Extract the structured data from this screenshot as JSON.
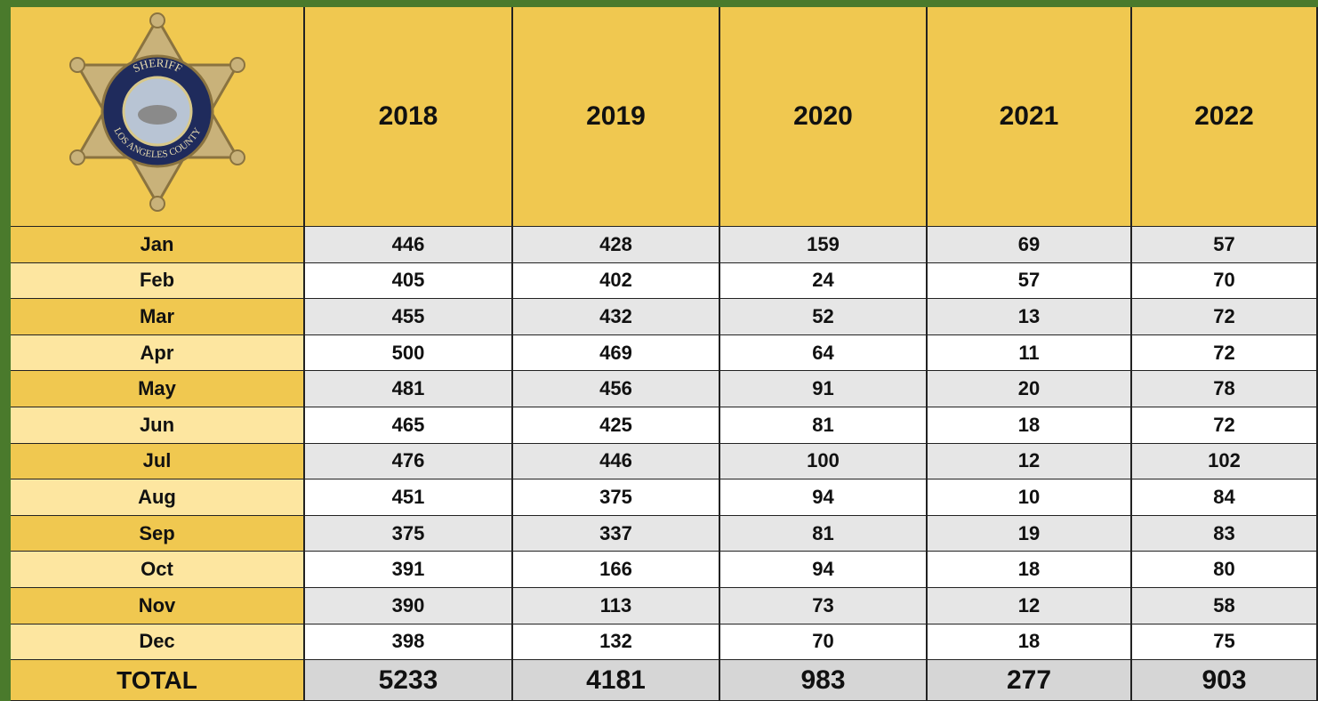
{
  "logo": {
    "top_text": "SHERIFF",
    "bottom_text": "LOS ANGELES COUNTY"
  },
  "table": {
    "header": [
      "2018",
      "2019",
      "2020",
      "2021",
      "2022"
    ],
    "rows": [
      [
        "Jan",
        446,
        428,
        159,
        69,
        57
      ],
      [
        "Feb",
        405,
        402,
        24,
        57,
        70
      ],
      [
        "Mar",
        455,
        432,
        52,
        13,
        72
      ],
      [
        "Apr",
        500,
        469,
        64,
        11,
        72
      ],
      [
        "May",
        481,
        456,
        91,
        20,
        78
      ],
      [
        "Jun",
        465,
        425,
        81,
        18,
        72
      ],
      [
        "Jul",
        476,
        446,
        100,
        12,
        102
      ],
      [
        "Aug",
        451,
        375,
        94,
        10,
        84
      ],
      [
        "Sep",
        375,
        337,
        81,
        19,
        83
      ],
      [
        "Oct",
        391,
        166,
        94,
        18,
        80
      ],
      [
        "Nov",
        390,
        113,
        73,
        12,
        58
      ],
      [
        "Dec",
        398,
        132,
        70,
        18,
        75
      ]
    ],
    "total": [
      "TOTAL",
      5233,
      4181,
      983,
      277,
      903
    ]
  }
}
